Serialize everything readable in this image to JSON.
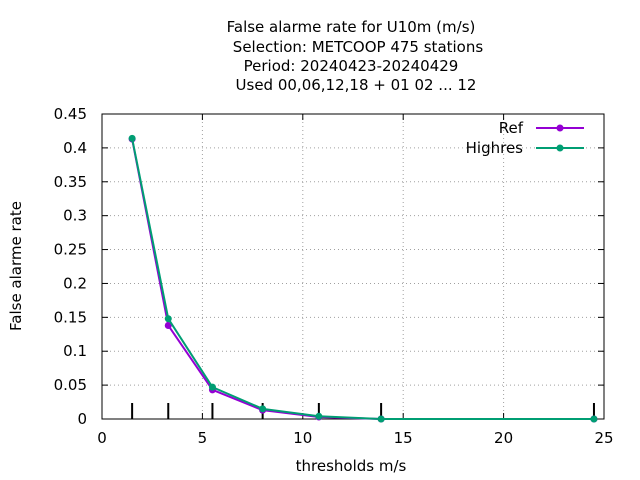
{
  "chart_data": {
    "type": "line",
    "title_lines": [
      "False alarme rate  for U10m (m/s)",
      "Selection: METCOOP    475 stations",
      "Period: 20240423-20240429",
      "Used  00,06,12,18 + 01 02 ... 12"
    ],
    "xlabel": "thresholds m/s",
    "ylabel": "False alarme rate",
    "xlim": [
      0,
      25
    ],
    "ylim": [
      0,
      0.45
    ],
    "x_ticks": [
      0,
      5,
      10,
      15,
      20,
      25
    ],
    "y_ticks": [
      0,
      0.05,
      0.1,
      0.15,
      0.2,
      0.25,
      0.3,
      0.35,
      0.4,
      0.45
    ],
    "x_tick_labels": [
      "0",
      "5",
      "10",
      "15",
      "20",
      "25"
    ],
    "y_tick_labels": [
      "0",
      "0.05",
      "0.1",
      "0.15",
      "0.2",
      "0.25",
      "0.3",
      "0.35",
      "0.4",
      "0.45"
    ],
    "grid": true,
    "legend_position": "top-right",
    "threshold_markers": [
      1.5,
      3.3,
      5.5,
      8.0,
      10.8,
      13.9,
      24.5
    ],
    "series": [
      {
        "name": "Ref",
        "color": "#9400d3",
        "x": [
          1.5,
          3.3,
          5.5,
          8.0,
          10.8,
          13.9,
          24.5
        ],
        "values": [
          0.413,
          0.138,
          0.043,
          0.013,
          0.003,
          0.0,
          0.0
        ]
      },
      {
        "name": "Highres",
        "color": "#009e73",
        "x": [
          1.5,
          3.3,
          5.5,
          8.0,
          10.8,
          13.9,
          24.5
        ],
        "values": [
          0.414,
          0.148,
          0.047,
          0.015,
          0.004,
          0.0,
          0.0
        ]
      }
    ]
  }
}
